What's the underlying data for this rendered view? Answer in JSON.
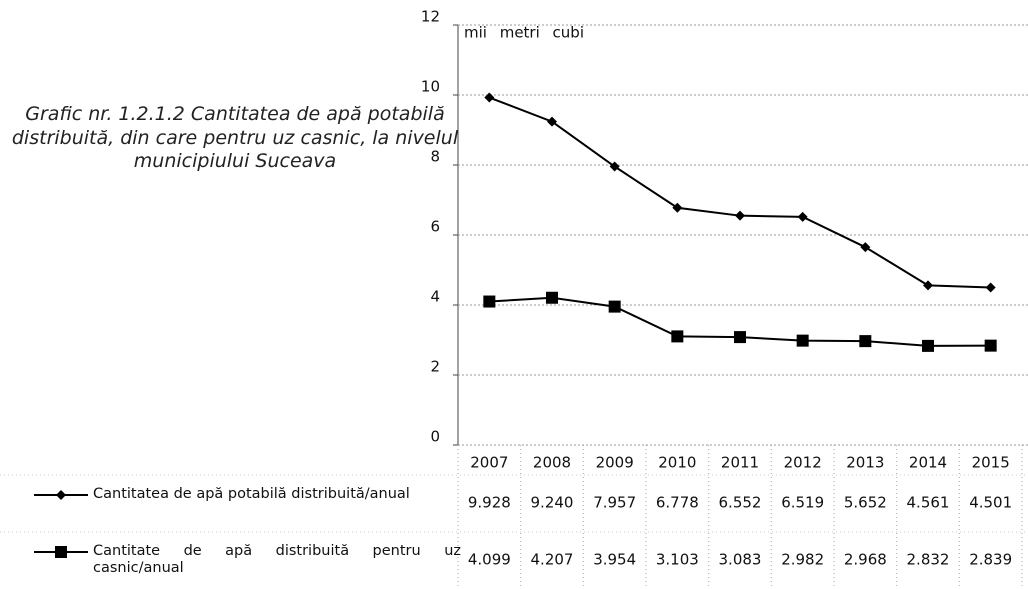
{
  "chart_data": {
    "type": "line",
    "title": "Grafic nr. 1.2.1.2 Cantitatea de apă potabilă distribuită, din care pentru uz casnic, la nivelul municipiului Suceava",
    "annotation": "mii metri cubi",
    "categories": [
      "2007",
      "2008",
      "2009",
      "2010",
      "2011",
      "2012",
      "2013",
      "2014",
      "2015"
    ],
    "series": [
      {
        "name": "Cantitatea de apă potabilă distribuită/anual",
        "color": "#000000",
        "marker": "diamond",
        "values": [
          9.928,
          9.24,
          7.957,
          6.778,
          6.552,
          6.519,
          5.652,
          4.561,
          4.501
        ],
        "value_labels": [
          "9.928",
          "9.240",
          "7.957",
          "6.778",
          "6.552",
          "6.519",
          "5.652",
          "4.561",
          "4.501"
        ]
      },
      {
        "name": "Cantitate de apă distribuită pentru uz casnic/anual",
        "color": "#000000",
        "marker": "square",
        "values": [
          4.099,
          4.207,
          3.954,
          3.103,
          3.083,
          2.982,
          2.968,
          2.832,
          2.839
        ],
        "value_labels": [
          "4.099",
          "4.207",
          "3.954",
          "3.103",
          "3.083",
          "2.982",
          "2.968",
          "2.832",
          "2.839"
        ]
      }
    ],
    "ylim": [
      0,
      12
    ],
    "yticks": [
      0,
      2,
      4,
      6,
      8,
      10,
      12
    ],
    "grid": true
  }
}
